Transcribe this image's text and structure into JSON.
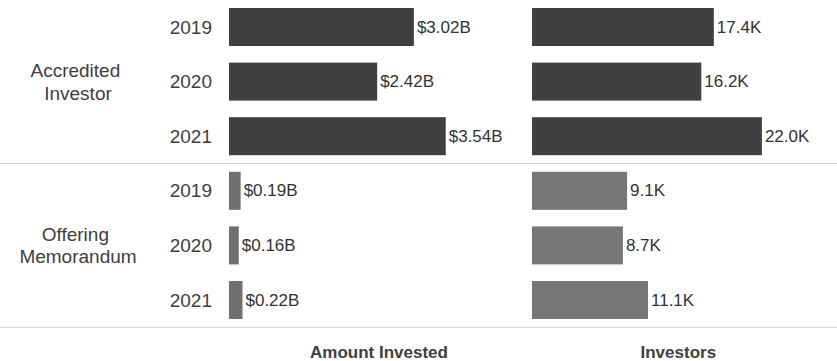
{
  "chart_data": {
    "type": "bar",
    "orientation": "horizontal",
    "data_labels": true,
    "tick_labels": "y",
    "categories": [
      "2019",
      "2020",
      "2021",
      "2019",
      "2020",
      "2021"
    ],
    "groups": [
      "Accredited Investor",
      "Accredited Investor",
      "Accredited Investor",
      "Offering Memorandum",
      "Offering Memorandum",
      "Offering Memorandum"
    ],
    "series": [
      {
        "name": "Amount Invested",
        "values": [
          3.02,
          2.42,
          3.54,
          0.19,
          0.16,
          0.22
        ],
        "value_labels": [
          "$3.02B",
          "$2.42B",
          "$3.54B",
          "$0.19B",
          "$0.16B",
          "$0.22B"
        ],
        "colors": [
          "#404040",
          "#404040",
          "#404040",
          "#6f6f6f",
          "#6f6f6f",
          "#6f6f6f"
        ],
        "xlim": [
          0,
          4.9
        ]
      },
      {
        "name": "Investors",
        "values": [
          17.4,
          16.2,
          22.0,
          9.1,
          8.7,
          11.1
        ],
        "value_labels": [
          "17.4K",
          "16.2K",
          "22.0K",
          "9.1K",
          "8.7K",
          "11.1K"
        ],
        "colors": [
          "#404040",
          "#404040",
          "#404040",
          "#777777",
          "#777777",
          "#777777"
        ],
        "xlim": [
          0,
          28
        ]
      }
    ]
  }
}
